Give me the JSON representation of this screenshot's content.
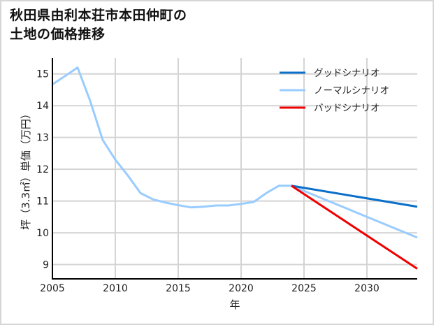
{
  "chart_data": {
    "type": "line",
    "title": "秋田県由利本荘市本田仲町の土地の価格推移",
    "title_lines": [
      "秋田県由利本荘市本田仲町の",
      "土地の価格推移"
    ],
    "xlabel": "年",
    "ylabel": "坪（3.3㎡）単価（万円）",
    "xlim": [
      2005,
      2034
    ],
    "ylim": [
      8.55,
      15.5
    ],
    "xticks": [
      2005,
      2010,
      2015,
      2020,
      2025,
      2030
    ],
    "yticks": [
      9,
      10,
      11,
      12,
      13,
      14,
      15
    ],
    "grid": true,
    "legend_position": "upper right",
    "series": [
      {
        "name": "グッドシナリオ",
        "color": "#0a6fc9",
        "x": [
          2024,
          2034
        ],
        "values": [
          11.48,
          10.82
        ]
      },
      {
        "name": "ノーマルシナリオ",
        "color": "#99ccff",
        "x": [
          2005,
          2006,
          2007,
          2008,
          2009,
          2010,
          2011,
          2012,
          2013,
          2014,
          2015,
          2016,
          2017,
          2018,
          2019,
          2020,
          2021,
          2022,
          2023,
          2024,
          2034
        ],
        "values": [
          14.67,
          14.93,
          15.2,
          14.15,
          12.92,
          12.3,
          11.8,
          11.25,
          11.05,
          10.95,
          10.87,
          10.8,
          10.82,
          10.86,
          10.86,
          10.91,
          10.97,
          11.25,
          11.48,
          11.48,
          9.85
        ]
      },
      {
        "name": "バッドシナリオ",
        "color": "#ee0000",
        "x": [
          2024,
          2034
        ],
        "values": [
          11.48,
          8.87
        ]
      }
    ]
  }
}
